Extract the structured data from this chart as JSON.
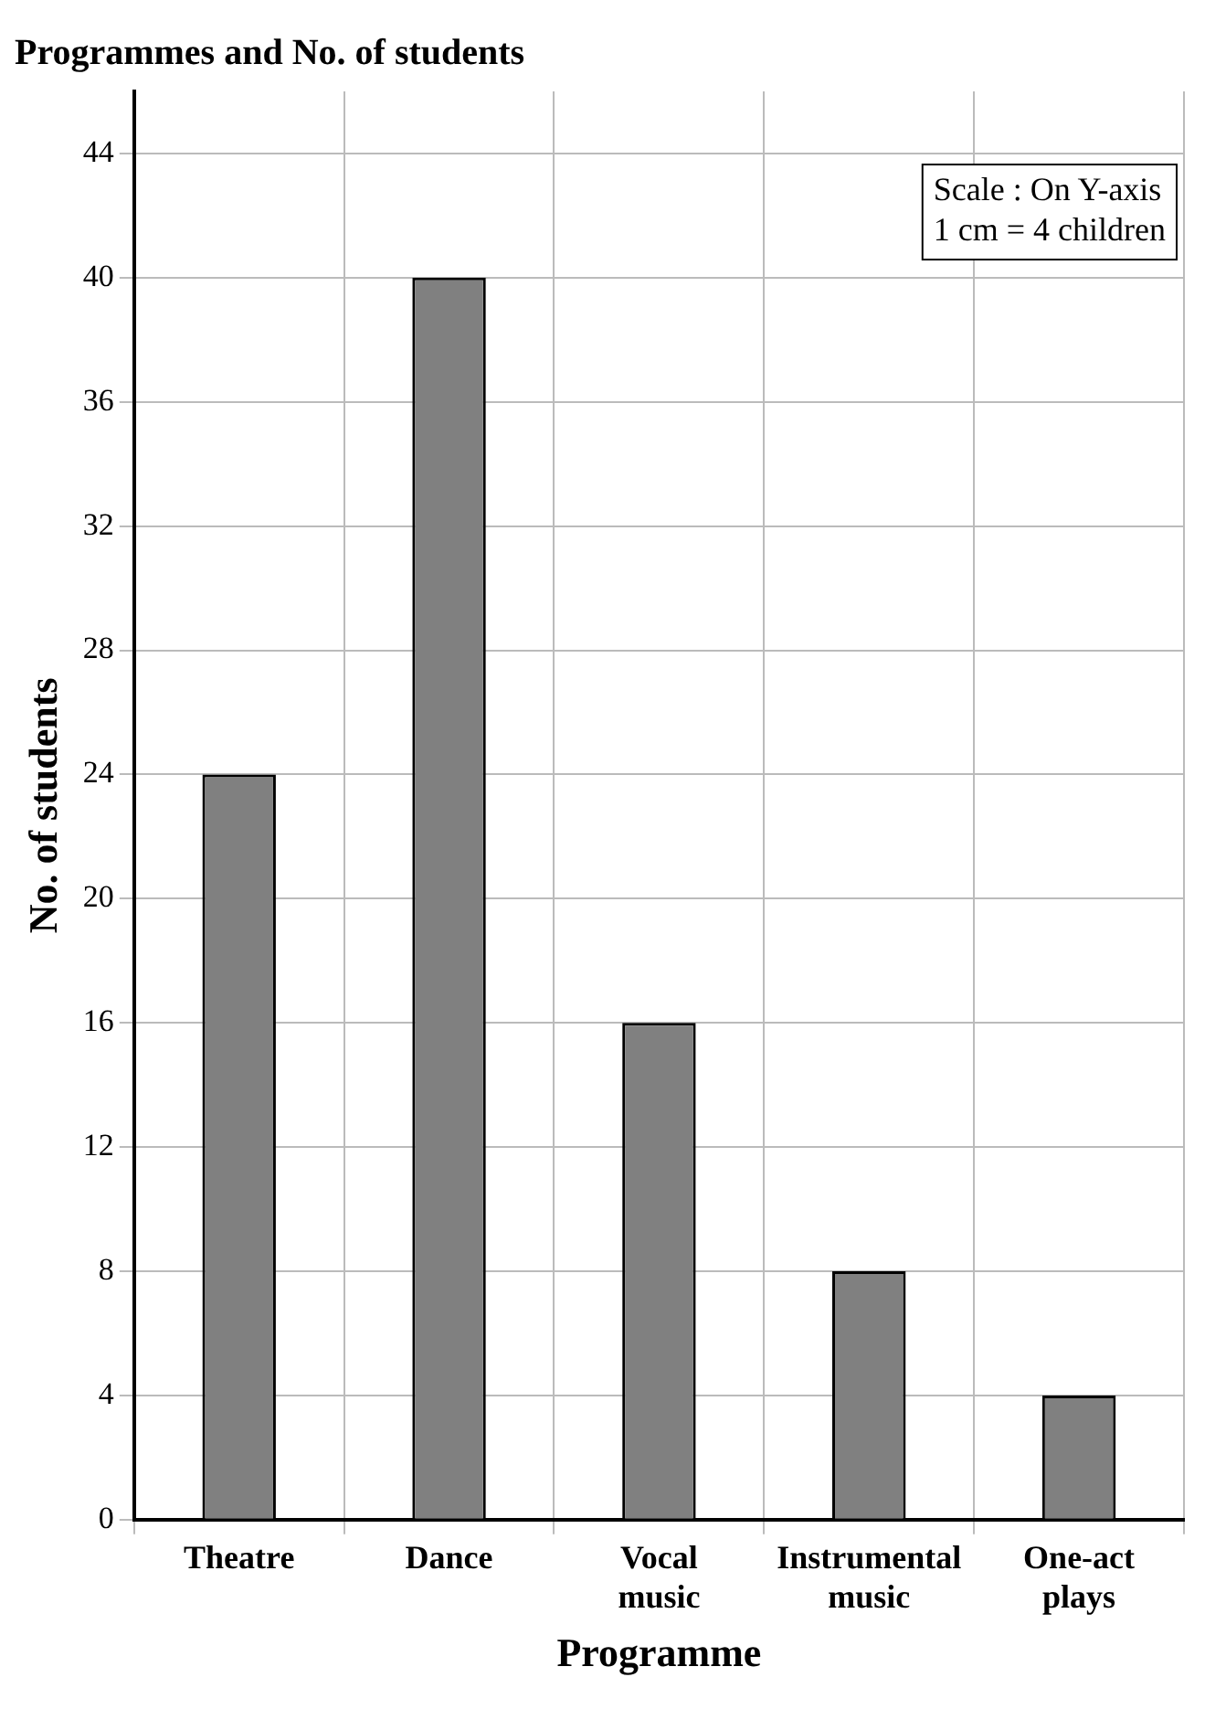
{
  "chart_data": {
    "type": "bar",
    "title": "Programmes and No. of students",
    "xlabel": "Programme",
    "ylabel": "No. of students",
    "categories": [
      "Theatre",
      "Dance",
      "Vocal music",
      "Instrumental music",
      "One-act plays"
    ],
    "values": [
      24,
      40,
      16,
      8,
      4
    ],
    "color": "#808080",
    "ylim": [
      0,
      46
    ],
    "yticks": [
      0,
      4,
      8,
      12,
      16,
      20,
      24,
      28,
      32,
      36,
      40,
      44
    ],
    "grid": true,
    "annotations": [
      "Scale : On Y-axis",
      "1 cm = 4 children"
    ]
  }
}
